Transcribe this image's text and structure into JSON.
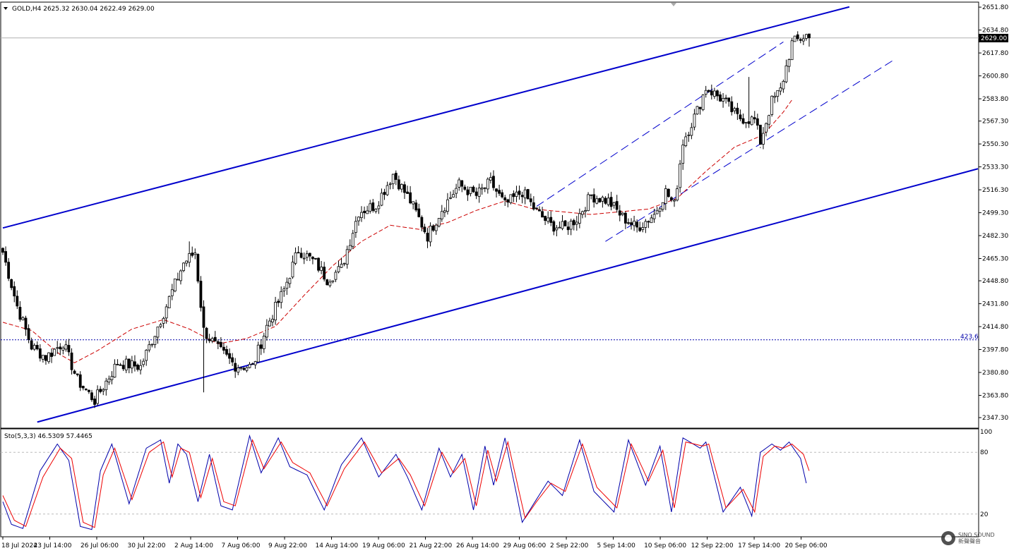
{
  "header": {
    "main_legend": "GOLD,H4  2625.32 2630.04 2622.49 2629.00",
    "current_price": "2629.00",
    "hline_label": "423.6",
    "osc_legend": "Sto(5,3,3) 46.5309 57.4465",
    "osc_levels": [
      "100",
      "80",
      "20"
    ]
  },
  "watermark": {
    "line1": "SINO SOUND",
    "line2": "新聲聲音"
  },
  "colors": {
    "bull": "#ffffff",
    "bear": "#000000",
    "channel": "#0000cc",
    "ma": "#cc0000",
    "stoch_main": "#0000aa",
    "stoch_signal": "#ee0000",
    "grid": "#c0c0c0"
  },
  "chart_data": [
    {
      "type": "candlestick",
      "title": "GOLD,H4",
      "ohlc_last": {
        "open": 2625.32,
        "high": 2630.04,
        "low": 2622.49,
        "close": 2629.0
      },
      "ylim": [
        2340,
        2655
      ],
      "ytick_labels": [
        "2651.80",
        "2634.80",
        "2617.80",
        "2600.80",
        "2583.80",
        "2567.30",
        "2550.30",
        "2533.30",
        "2516.30",
        "2499.30",
        "2482.30",
        "2465.30",
        "2448.80",
        "2431.80",
        "2414.80",
        "2397.80",
        "2380.80",
        "2363.80",
        "2347.30"
      ],
      "xtick_labels": [
        "18 Jul 2024",
        "23 Jul 14:00",
        "26 Jul 06:00",
        "30 Jul 22:00",
        "2 Aug 14:00",
        "7 Aug 06:00",
        "9 Aug 22:00",
        "14 Aug 14:00",
        "19 Aug 06:00",
        "21 Aug 22:00",
        "26 Aug 14:00",
        "29 Aug 06:00",
        "2 Sep 22:00",
        "5 Sep 14:00",
        "10 Sep 06:00",
        "12 Sep 22:00",
        "17 Sep 14:00",
        "20 Sep 06:00"
      ],
      "anchors": [
        [
          0,
          2470
        ],
        [
          5,
          2430
        ],
        [
          10,
          2400
        ],
        [
          15,
          2392
        ],
        [
          21,
          2403
        ],
        [
          26,
          2375
        ],
        [
          32,
          2360
        ],
        [
          40,
          2388
        ],
        [
          48,
          2385
        ],
        [
          56,
          2425
        ],
        [
          63,
          2462
        ],
        [
          67,
          2470
        ],
        [
          70,
          2412
        ],
        [
          75,
          2398
        ],
        [
          81,
          2386
        ],
        [
          87,
          2385
        ],
        [
          92,
          2415
        ],
        [
          98,
          2442
        ],
        [
          103,
          2472
        ],
        [
          109,
          2462
        ],
        [
          113,
          2450
        ],
        [
          118,
          2458
        ],
        [
          124,
          2500
        ],
        [
          130,
          2505
        ],
        [
          136,
          2528
        ],
        [
          142,
          2508
        ],
        [
          148,
          2482
        ],
        [
          153,
          2502
        ],
        [
          159,
          2520
        ],
        [
          165,
          2512
        ],
        [
          170,
          2522
        ],
        [
          175,
          2505
        ],
        [
          181,
          2515
        ],
        [
          186,
          2500
        ],
        [
          191,
          2490
        ],
        [
          196,
          2488
        ],
        [
          200,
          2495
        ],
        [
          205,
          2512
        ],
        [
          211,
          2508
        ],
        [
          216,
          2496
        ],
        [
          221,
          2488
        ],
        [
          227,
          2498
        ],
        [
          231,
          2515
        ],
        [
          234,
          2505
        ],
        [
          237,
          2552
        ],
        [
          242,
          2575
        ],
        [
          245,
          2592
        ],
        [
          251,
          2583
        ],
        [
          256,
          2570
        ],
        [
          262,
          2568
        ],
        [
          264,
          2552
        ],
        [
          268,
          2582
        ],
        [
          271,
          2590
        ],
        [
          275,
          2625
        ],
        [
          280,
          2631
        ],
        [
          281,
          2629
        ]
      ],
      "ma_anchors": [
        [
          0,
          2418
        ],
        [
          10,
          2412
        ],
        [
          20,
          2394
        ],
        [
          25,
          2388
        ],
        [
          33,
          2397
        ],
        [
          45,
          2413
        ],
        [
          56,
          2420
        ],
        [
          65,
          2413
        ],
        [
          75,
          2402
        ],
        [
          85,
          2406
        ],
        [
          95,
          2415
        ],
        [
          105,
          2438
        ],
        [
          115,
          2460
        ],
        [
          125,
          2478
        ],
        [
          135,
          2490
        ],
        [
          145,
          2487
        ],
        [
          155,
          2492
        ],
        [
          165,
          2501
        ],
        [
          175,
          2508
        ],
        [
          185,
          2502
        ],
        [
          195,
          2500
        ],
        [
          205,
          2498
        ],
        [
          215,
          2500
        ],
        [
          225,
          2502
        ],
        [
          235,
          2510
        ],
        [
          245,
          2530
        ],
        [
          255,
          2548
        ],
        [
          265,
          2557
        ],
        [
          272,
          2574
        ],
        [
          275,
          2583
        ]
      ],
      "total_bars": 282,
      "spikes": [
        [
          70,
          2366
        ],
        [
          65,
          2478
        ],
        [
          148,
          2473
        ],
        [
          264,
          2548
        ],
        [
          260,
          2600
        ]
      ],
      "trendlines": [
        {
          "name": "upper-channel",
          "x1": 0,
          "y1": 2488,
          "x2": 295,
          "y2": 2652,
          "style": "solid"
        },
        {
          "name": "lower-channel",
          "x1": 12,
          "y1": 2344,
          "x2": 340,
          "y2": 2532,
          "style": "solid"
        },
        {
          "name": "inner-upper",
          "x1": 186,
          "y1": 2504,
          "x2": 272,
          "y2": 2626,
          "style": "dashed"
        },
        {
          "name": "inner-lower",
          "x1": 210,
          "y1": 2478,
          "x2": 310,
          "y2": 2612,
          "style": "dashed"
        }
      ],
      "horizontal_levels": [
        {
          "value": 2405,
          "label": "423.6",
          "style": "dotted"
        },
        {
          "value": 2629,
          "style": "solid-gray"
        }
      ]
    },
    {
      "type": "line",
      "title": "Sto(5,3,3)",
      "series": [
        {
          "name": "main",
          "value_last": 46.5309,
          "anchors": [
            [
              0,
              32
            ],
            [
              3,
              10
            ],
            [
              7,
              6
            ],
            [
              13,
              62
            ],
            [
              19,
              88
            ],
            [
              23,
              72
            ],
            [
              27,
              8
            ],
            [
              31,
              5
            ],
            [
              34,
              62
            ],
            [
              38,
              88
            ],
            [
              44,
              30
            ],
            [
              50,
              84
            ],
            [
              55,
              92
            ],
            [
              58,
              50
            ],
            [
              61,
              88
            ],
            [
              64,
              78
            ],
            [
              68,
              32
            ],
            [
              72,
              78
            ],
            [
              76,
              28
            ],
            [
              80,
              24
            ],
            [
              86,
              96
            ],
            [
              90,
              60
            ],
            [
              96,
              94
            ],
            [
              100,
              66
            ],
            [
              106,
              58
            ],
            [
              112,
              24
            ],
            [
              118,
              68
            ],
            [
              125,
              94
            ],
            [
              131,
              56
            ],
            [
              137,
              78
            ],
            [
              141,
              56
            ],
            [
              146,
              24
            ],
            [
              152,
              84
            ],
            [
              156,
              56
            ],
            [
              160,
              78
            ],
            [
              164,
              24
            ],
            [
              168,
              86
            ],
            [
              171,
              48
            ],
            [
              175,
              94
            ],
            [
              181,
              12
            ],
            [
              185,
              30
            ],
            [
              190,
              52
            ],
            [
              195,
              38
            ],
            [
              201,
              92
            ],
            [
              206,
              42
            ],
            [
              213,
              22
            ],
            [
              218,
              92
            ],
            [
              224,
              48
            ],
            [
              229,
              86
            ],
            [
              233,
              22
            ],
            [
              237,
              94
            ],
            [
              243,
              84
            ],
            [
              245,
              90
            ],
            [
              251,
              22
            ],
            [
              257,
              46
            ],
            [
              261,
              18
            ],
            [
              264,
              80
            ],
            [
              268,
              88
            ],
            [
              271,
              82
            ],
            [
              274,
              90
            ],
            [
              278,
              74
            ],
            [
              280,
              50
            ]
          ]
        },
        {
          "name": "signal",
          "value_last": 57.4465,
          "anchors": [
            [
              0,
              38
            ],
            [
              4,
              14
            ],
            [
              8,
              8
            ],
            [
              14,
              56
            ],
            [
              20,
              84
            ],
            [
              24,
              74
            ],
            [
              28,
              12
            ],
            [
              32,
              7
            ],
            [
              35,
              58
            ],
            [
              39,
              84
            ],
            [
              45,
              34
            ],
            [
              51,
              80
            ],
            [
              56,
              90
            ],
            [
              59,
              56
            ],
            [
              62,
              84
            ],
            [
              65,
              80
            ],
            [
              69,
              36
            ],
            [
              73,
              74
            ],
            [
              77,
              32
            ],
            [
              81,
              28
            ],
            [
              87,
              92
            ],
            [
              91,
              64
            ],
            [
              97,
              90
            ],
            [
              101,
              70
            ],
            [
              107,
              60
            ],
            [
              113,
              28
            ],
            [
              119,
              64
            ],
            [
              126,
              90
            ],
            [
              132,
              60
            ],
            [
              138,
              74
            ],
            [
              142,
              58
            ],
            [
              147,
              28
            ],
            [
              153,
              80
            ],
            [
              157,
              60
            ],
            [
              161,
              74
            ],
            [
              165,
              28
            ],
            [
              169,
              82
            ],
            [
              172,
              52
            ],
            [
              176,
              90
            ],
            [
              182,
              16
            ],
            [
              186,
              32
            ],
            [
              191,
              50
            ],
            [
              196,
              42
            ],
            [
              202,
              88
            ],
            [
              207,
              46
            ],
            [
              214,
              26
            ],
            [
              219,
              88
            ],
            [
              225,
              52
            ],
            [
              230,
              82
            ],
            [
              234,
              26
            ],
            [
              238,
              90
            ],
            [
              244,
              86
            ],
            [
              246,
              88
            ],
            [
              252,
              26
            ],
            [
              258,
              44
            ],
            [
              262,
              22
            ],
            [
              265,
              76
            ],
            [
              269,
              86
            ],
            [
              272,
              84
            ],
            [
              275,
              88
            ],
            [
              279,
              78
            ],
            [
              281,
              62
            ]
          ]
        }
      ],
      "ylim": [
        0,
        100
      ],
      "levels": [
        80,
        20
      ]
    }
  ]
}
